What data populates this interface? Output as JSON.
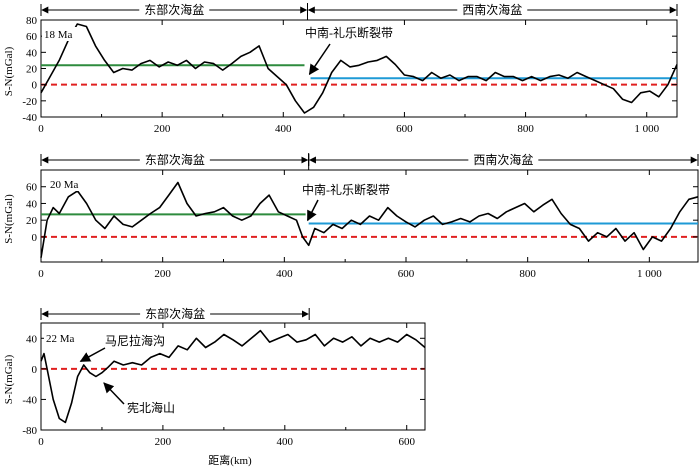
{
  "chart_data": [
    {
      "type": "line",
      "age_label": "18 Ma",
      "ylabel": "S-N(mGal)",
      "xlim": [
        0,
        1050
      ],
      "ylim": [
        -40,
        80
      ],
      "xticks": [
        0,
        200,
        400,
        600,
        800,
        1000
      ],
      "xtick_labels": [
        "0",
        "200",
        "400",
        "600",
        "800",
        "1 000"
      ],
      "yticks": [
        -40,
        -20,
        0,
        20,
        40,
        60,
        80
      ],
      "ytick_labels": [
        "-40",
        "-20",
        "0",
        "20",
        "40",
        "60",
        "80"
      ],
      "regions": [
        {
          "label": "东部次海盆",
          "x0": 0,
          "x1": 440
        },
        {
          "label": "西南次海盆",
          "x0": 440,
          "x1": 1050
        }
      ],
      "boundary_x": 440,
      "annotation": {
        "text": "中南-礼乐断裂带",
        "target_x": 440,
        "target_y": 8
      },
      "mean_lines": [
        {
          "x0": 0,
          "x1": 435,
          "y": 24,
          "color": "#2e8b3e"
        },
        {
          "x0": 445,
          "x1": 1050,
          "y": 8,
          "color": "#1e9ad6"
        }
      ],
      "zero_line_color": "#e02020",
      "series": [
        {
          "x": [
            0,
            15,
            30,
            45,
            60,
            75,
            90,
            105,
            120,
            135,
            150,
            165,
            180,
            195,
            210,
            225,
            240,
            255,
            270,
            285,
            300,
            315,
            330,
            345,
            360,
            375,
            390,
            405,
            420,
            435,
            450,
            465,
            480,
            495,
            510,
            525,
            540,
            555,
            570,
            585,
            600,
            615,
            630,
            645,
            660,
            675,
            690,
            705,
            720,
            735,
            750,
            765,
            780,
            795,
            810,
            825,
            840,
            855,
            870,
            885,
            900,
            915,
            930,
            945,
            960,
            975,
            990,
            1005,
            1020,
            1035,
            1050
          ],
          "y": [
            -10,
            10,
            30,
            55,
            75,
            72,
            48,
            30,
            15,
            20,
            18,
            26,
            30,
            22,
            28,
            24,
            30,
            20,
            28,
            26,
            18,
            26,
            35,
            40,
            48,
            20,
            10,
            0,
            -20,
            -35,
            -28,
            -10,
            15,
            30,
            22,
            24,
            28,
            30,
            35,
            25,
            12,
            10,
            5,
            15,
            8,
            12,
            5,
            10,
            10,
            5,
            15,
            10,
            10,
            5,
            10,
            5,
            10,
            12,
            8,
            15,
            10,
            5,
            0,
            -5,
            -18,
            -22,
            -10,
            -8,
            -15,
            0,
            25
          ]
        }
      ]
    },
    {
      "type": "line",
      "age_label": "20 Ma",
      "ylabel": "S-N(mGal)",
      "xlim": [
        0,
        1080
      ],
      "ylim": [
        -30,
        80
      ],
      "xticks": [
        0,
        200,
        400,
        600,
        800,
        1000
      ],
      "xtick_labels": [
        "0",
        "200",
        "400",
        "600",
        "800",
        "1 000"
      ],
      "yticks": [
        0,
        20,
        40,
        60
      ],
      "ytick_labels": [
        "0",
        "20",
        "40",
        "60"
      ],
      "regions": [
        {
          "label": "东部次海盆",
          "x0": 0,
          "x1": 440
        },
        {
          "label": "西南次海盆",
          "x0": 440,
          "x1": 1080
        }
      ],
      "boundary_x": 440,
      "annotation": {
        "text": "中南-礼乐断裂带",
        "target_x": 435,
        "target_y": 15
      },
      "mean_lines": [
        {
          "x0": 0,
          "x1": 435,
          "y": 27,
          "color": "#2e8b3e"
        },
        {
          "x0": 440,
          "x1": 1080,
          "y": 16,
          "color": "#1e9ad6"
        }
      ],
      "zero_line_color": "#e02020",
      "series": [
        {
          "x": [
            0,
            10,
            20,
            30,
            45,
            60,
            75,
            90,
            105,
            120,
            135,
            150,
            165,
            180,
            195,
            210,
            225,
            240,
            255,
            270,
            285,
            300,
            315,
            330,
            345,
            360,
            375,
            390,
            405,
            420,
            430,
            440,
            450,
            465,
            480,
            495,
            510,
            525,
            540,
            555,
            570,
            585,
            600,
            615,
            630,
            645,
            660,
            675,
            690,
            705,
            720,
            735,
            750,
            765,
            780,
            795,
            810,
            825,
            840,
            855,
            870,
            885,
            900,
            915,
            930,
            945,
            960,
            975,
            990,
            1005,
            1020,
            1035,
            1050,
            1065,
            1080
          ],
          "y": [
            -25,
            20,
            35,
            28,
            48,
            55,
            40,
            20,
            10,
            25,
            15,
            12,
            20,
            28,
            35,
            50,
            65,
            40,
            25,
            28,
            30,
            35,
            25,
            20,
            25,
            40,
            50,
            30,
            25,
            20,
            0,
            -10,
            10,
            5,
            15,
            10,
            20,
            15,
            25,
            20,
            35,
            25,
            18,
            12,
            20,
            25,
            15,
            18,
            22,
            18,
            25,
            28,
            22,
            30,
            35,
            40,
            30,
            38,
            45,
            28,
            15,
            10,
            -5,
            5,
            0,
            10,
            -5,
            5,
            -15,
            0,
            -5,
            10,
            30,
            45,
            48
          ]
        }
      ]
    },
    {
      "type": "line",
      "age_label": "22 Ma",
      "ylabel": "S-N(mGal)",
      "xlabel": "距离(km)",
      "xlim": [
        0,
        630
      ],
      "ylim": [
        -80,
        60
      ],
      "xticks": [
        0,
        200,
        400,
        600
      ],
      "xtick_labels": [
        "0",
        "200",
        "400",
        "600"
      ],
      "yticks": [
        -80,
        -40,
        0,
        40
      ],
      "ytick_labels": [
        "-80",
        "-40",
        "0",
        "40"
      ],
      "regions": [
        {
          "label": "东部次海盆",
          "x0": 0,
          "x1": 440
        }
      ],
      "annotations": [
        {
          "text": "马尼拉海沟",
          "target_x": 60,
          "target_y": 2
        },
        {
          "text": "宪北海山",
          "target_x": 100,
          "target_y": -8
        }
      ],
      "zero_line_color": "#e02020",
      "series": [
        {
          "x": [
            0,
            5,
            10,
            20,
            30,
            40,
            50,
            60,
            70,
            80,
            90,
            100,
            110,
            120,
            135,
            150,
            165,
            180,
            195,
            210,
            225,
            240,
            255,
            270,
            285,
            300,
            315,
            330,
            345,
            360,
            375,
            390,
            405,
            420,
            435,
            450,
            465,
            480,
            495,
            510,
            525,
            540,
            555,
            570,
            585,
            600,
            615,
            630
          ],
          "y": [
            10,
            20,
            0,
            -40,
            -65,
            -70,
            -45,
            -10,
            5,
            -5,
            -10,
            -5,
            2,
            10,
            5,
            8,
            5,
            15,
            20,
            15,
            30,
            25,
            40,
            28,
            35,
            45,
            38,
            30,
            40,
            50,
            35,
            40,
            45,
            35,
            38,
            45,
            30,
            40,
            35,
            42,
            30,
            40,
            35,
            40,
            35,
            45,
            38,
            28
          ]
        }
      ]
    }
  ]
}
